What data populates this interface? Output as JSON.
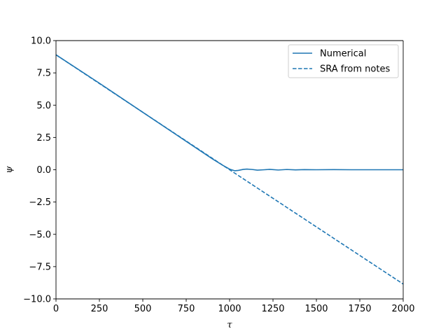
{
  "chart_data": {
    "type": "line",
    "title": "",
    "xlabel": "τ",
    "ylabel": "ψ",
    "xlim": [
      0,
      2000
    ],
    "ylim": [
      -10,
      10
    ],
    "xticks": [
      0,
      250,
      500,
      750,
      1000,
      1250,
      1500,
      1750,
      2000
    ],
    "xtick_labels": [
      "0",
      "250",
      "500",
      "750",
      "1000",
      "1250",
      "1500",
      "1750",
      "2000"
    ],
    "yticks": [
      -10,
      -7.5,
      -5,
      -2.5,
      0,
      2.5,
      5,
      7.5,
      10
    ],
    "ytick_labels": [
      "−10.0",
      "−7.5",
      "−5.0",
      "−2.5",
      "0.0",
      "2.5",
      "5.0",
      "7.5",
      "10.0"
    ],
    "grid": false,
    "legend_position": "top-right",
    "series": [
      {
        "name": "Numerical",
        "style": "solid",
        "color": "#1f77b4",
        "x": [
          0,
          250,
          500,
          750,
          900,
          960,
          1000,
          1030,
          1050,
          1080,
          1100,
          1130,
          1160,
          1200,
          1230,
          1280,
          1330,
          1380,
          1430,
          1500,
          1600,
          1700,
          1800,
          1900,
          2000
        ],
        "y": [
          8.9,
          6.7,
          4.45,
          2.2,
          0.85,
          0.35,
          0.05,
          -0.08,
          -0.05,
          0.03,
          0.05,
          0.02,
          -0.03,
          0.0,
          0.03,
          -0.02,
          0.02,
          -0.01,
          0.01,
          0.0,
          0.01,
          0.0,
          0.0,
          0.0,
          0.0
        ]
      },
      {
        "name": "SRA from notes",
        "style": "dashed",
        "color": "#1f77b4",
        "x": [
          0,
          1000,
          2000
        ],
        "y": [
          8.9,
          0.0,
          -8.85
        ]
      }
    ]
  }
}
